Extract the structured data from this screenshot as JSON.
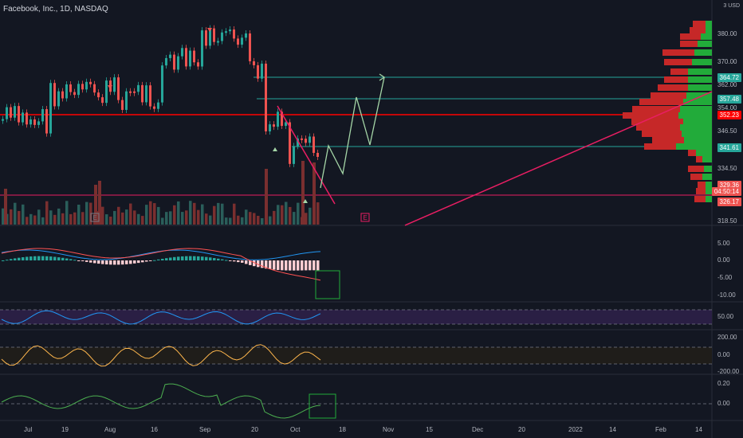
{
  "header": {
    "title": "Facebook, Inc., 1D, NASDAQ",
    "currency": "USD",
    "currency_prefix": "3"
  },
  "price_axis": [
    "380.00",
    "370.00",
    "362.00",
    "354.00",
    "346.50",
    "334.50",
    "318.50"
  ],
  "price_tags": [
    {
      "label": "364.72",
      "color": "#26a69a"
    },
    {
      "label": "357.48",
      "color": "#26a69a"
    },
    {
      "label": "352.23",
      "color": "#ff0000"
    },
    {
      "label": "341.61",
      "color": "#26a69a"
    },
    {
      "label": "329.36",
      "color": "#ef5350"
    },
    {
      "label": "04:50:14",
      "color": "#ef5350"
    },
    {
      "label": "326.17",
      "color": "#ef5350"
    }
  ],
  "macd_axis": [
    "5.00",
    "0.00",
    "-5.00",
    "-10.00"
  ],
  "rsi_axis": [
    "50.00"
  ],
  "cci_axis": [
    "200.00",
    "0.00",
    "-200.00"
  ],
  "mom_axis": [
    "0.20",
    "0.00"
  ],
  "time_axis": [
    "Jul",
    "19",
    "Aug",
    "16",
    "Sep",
    "20",
    "Oct",
    "18",
    "Nov",
    "15",
    "Dec",
    "20",
    "2022",
    "14",
    "Feb",
    "14"
  ],
  "markers": {
    "earnings_1": "E",
    "earnings_2": "E"
  },
  "colors": {
    "up": "#26a69a",
    "down": "#ef5350",
    "bg": "#131722",
    "green": "#22ab3a",
    "red": "#c62828"
  }
}
